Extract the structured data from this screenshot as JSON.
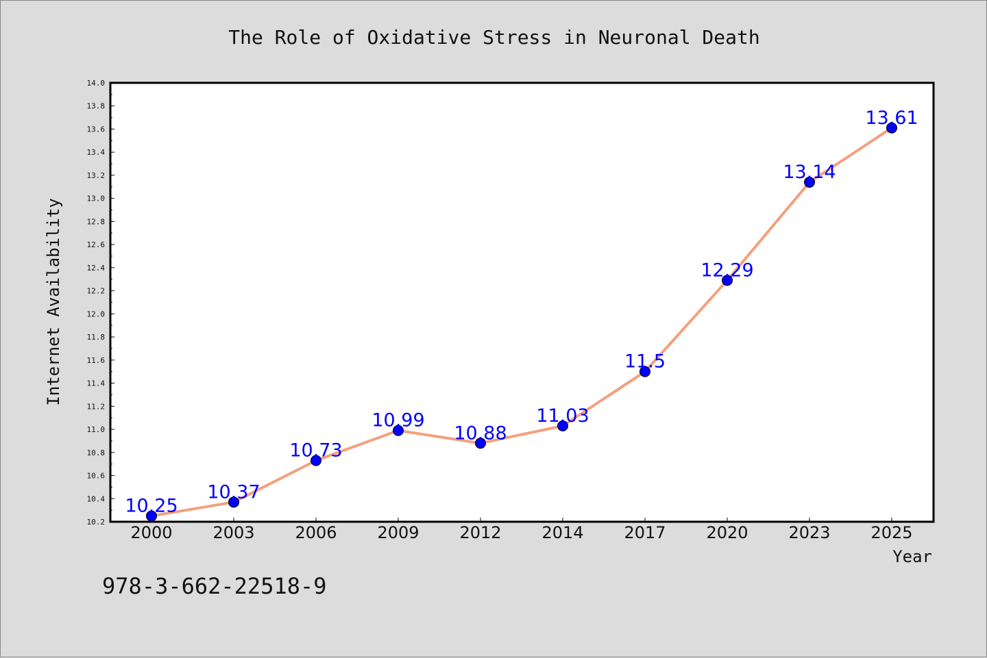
{
  "chart_data": {
    "type": "line",
    "title": "The Role of Oxidative Stress in Neuronal Death",
    "xlabel": "Year",
    "ylabel": "Internet Availability",
    "categories": [
      "2000",
      "2003",
      "2006",
      "2009",
      "2012",
      "2014",
      "2017",
      "2020",
      "2023",
      "2025"
    ],
    "values": [
      10.25,
      10.37,
      10.73,
      10.99,
      10.88,
      11.03,
      11.5,
      12.29,
      13.14,
      13.61
    ],
    "data_labels": [
      "10.25",
      "10.37",
      "10.73",
      "10.99",
      "10.88",
      "11.03",
      "11.5",
      "12.29",
      "13.14",
      "13.61"
    ],
    "ylim": [
      10.2,
      14.0
    ],
    "yticks": [
      "10.2",
      "10.4",
      "10.6",
      "10.8",
      "11.0",
      "11.2",
      "11.4",
      "11.6",
      "11.8",
      "12.0",
      "12.2",
      "12.4",
      "12.6",
      "12.8",
      "13.0",
      "13.2",
      "13.4",
      "13.6",
      "13.8",
      "14.0"
    ],
    "grid": false,
    "line_color": "#f4a07c",
    "marker_color": "#0000ff",
    "label_color": "#0000ff"
  },
  "footer": {
    "text": "978-3-662-22518-9"
  }
}
